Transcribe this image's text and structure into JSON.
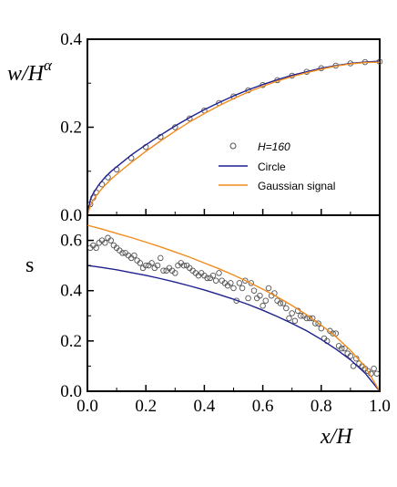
{
  "chart_data": [
    {
      "type": "line",
      "panel": "top",
      "ylabel_base": "w/H",
      "ylabel_exp": "α",
      "xlim": [
        0.0,
        1.0
      ],
      "ylim": [
        0.0,
        0.4
      ],
      "yticks": [
        "0.0",
        "0.2",
        "0.4"
      ],
      "legend": [
        {
          "label": "H=160",
          "marker": "open-circle",
          "italic": true
        },
        {
          "label": "Circle",
          "color": "#1f1f8f"
        },
        {
          "label": "Gaussian signal",
          "color": "#f08c1e"
        }
      ],
      "series": [
        {
          "name": "H=160",
          "style": "scatter",
          "color": "#555555",
          "x": [
            0.01,
            0.02,
            0.03,
            0.05,
            0.07,
            0.1,
            0.15,
            0.2,
            0.25,
            0.3,
            0.35,
            0.4,
            0.45,
            0.5,
            0.55,
            0.6,
            0.65,
            0.7,
            0.75,
            0.8,
            0.85,
            0.9,
            0.95,
            1.0
          ],
          "y": [
            0.025,
            0.04,
            0.052,
            0.07,
            0.086,
            0.104,
            0.13,
            0.155,
            0.178,
            0.2,
            0.22,
            0.238,
            0.255,
            0.27,
            0.284,
            0.296,
            0.307,
            0.317,
            0.326,
            0.334,
            0.34,
            0.345,
            0.348,
            0.349
          ]
        },
        {
          "name": "Circle",
          "style": "line",
          "color": "#1f1f8f",
          "x": [
            0.0,
            0.01,
            0.02,
            0.04,
            0.06,
            0.08,
            0.1,
            0.15,
            0.2,
            0.25,
            0.3,
            0.35,
            0.4,
            0.45,
            0.5,
            0.55,
            0.6,
            0.65,
            0.7,
            0.75,
            0.8,
            0.85,
            0.9,
            0.95,
            1.0
          ],
          "y": [
            0.0,
            0.035,
            0.05,
            0.07,
            0.086,
            0.099,
            0.11,
            0.137,
            0.16,
            0.182,
            0.203,
            0.222,
            0.24,
            0.256,
            0.271,
            0.285,
            0.297,
            0.308,
            0.318,
            0.326,
            0.334,
            0.34,
            0.345,
            0.348,
            0.35
          ]
        },
        {
          "name": "Gaussian signal",
          "style": "line",
          "color": "#f08c1e",
          "x": [
            0.0,
            0.01,
            0.02,
            0.04,
            0.06,
            0.08,
            0.1,
            0.15,
            0.2,
            0.25,
            0.3,
            0.35,
            0.4,
            0.45,
            0.5,
            0.55,
            0.6,
            0.65,
            0.7,
            0.75,
            0.8,
            0.85,
            0.9,
            0.95,
            1.0
          ],
          "y": [
            0.0,
            0.022,
            0.034,
            0.053,
            0.068,
            0.081,
            0.093,
            0.12,
            0.145,
            0.169,
            0.191,
            0.212,
            0.231,
            0.249,
            0.265,
            0.28,
            0.293,
            0.305,
            0.315,
            0.324,
            0.332,
            0.339,
            0.344,
            0.347,
            0.348
          ]
        }
      ]
    },
    {
      "type": "scatter",
      "panel": "bottom",
      "ylabel": "s",
      "xlabel": "x/H",
      "xlim": [
        0.0,
        1.0
      ],
      "ylim": [
        0.0,
        0.7
      ],
      "xticks": [
        "0.0",
        "0.2",
        "0.4",
        "0.6",
        "0.8",
        "1.0"
      ],
      "yticks": [
        "0.0",
        "0.2",
        "0.4",
        "0.6"
      ],
      "series": [
        {
          "name": "H=160",
          "style": "scatter",
          "color": "#555555",
          "x": [
            0.01,
            0.02,
            0.03,
            0.04,
            0.05,
            0.06,
            0.07,
            0.08,
            0.09,
            0.1,
            0.11,
            0.12,
            0.13,
            0.14,
            0.15,
            0.16,
            0.17,
            0.18,
            0.19,
            0.2,
            0.21,
            0.22,
            0.23,
            0.24,
            0.25,
            0.26,
            0.27,
            0.28,
            0.29,
            0.3,
            0.31,
            0.32,
            0.33,
            0.34,
            0.35,
            0.36,
            0.37,
            0.38,
            0.39,
            0.4,
            0.41,
            0.42,
            0.43,
            0.44,
            0.45,
            0.46,
            0.47,
            0.48,
            0.49,
            0.5,
            0.51,
            0.52,
            0.53,
            0.54,
            0.55,
            0.56,
            0.57,
            0.58,
            0.59,
            0.6,
            0.61,
            0.62,
            0.63,
            0.64,
            0.65,
            0.66,
            0.67,
            0.68,
            0.69,
            0.7,
            0.71,
            0.72,
            0.73,
            0.74,
            0.75,
            0.76,
            0.77,
            0.78,
            0.79,
            0.8,
            0.81,
            0.82,
            0.83,
            0.84,
            0.85,
            0.86,
            0.87,
            0.88,
            0.89,
            0.9,
            0.91,
            0.92,
            0.93,
            0.94,
            0.95,
            0.96,
            0.97,
            0.98,
            0.99
          ],
          "y": [
            0.57,
            0.58,
            0.57,
            0.59,
            0.6,
            0.59,
            0.61,
            0.6,
            0.58,
            0.57,
            0.56,
            0.55,
            0.55,
            0.54,
            0.53,
            0.54,
            0.52,
            0.51,
            0.49,
            0.5,
            0.5,
            0.51,
            0.49,
            0.5,
            0.53,
            0.48,
            0.48,
            0.49,
            0.48,
            0.47,
            0.5,
            0.51,
            0.5,
            0.5,
            0.49,
            0.48,
            0.47,
            0.46,
            0.47,
            0.46,
            0.45,
            0.45,
            0.46,
            0.44,
            0.47,
            0.44,
            0.43,
            0.42,
            0.43,
            0.41,
            0.36,
            0.43,
            0.41,
            0.44,
            0.37,
            0.43,
            0.4,
            0.37,
            0.38,
            0.34,
            0.36,
            0.41,
            0.38,
            0.39,
            0.36,
            0.35,
            0.35,
            0.33,
            0.29,
            0.31,
            0.28,
            0.32,
            0.3,
            0.3,
            0.29,
            0.29,
            0.29,
            0.27,
            0.27,
            0.25,
            0.21,
            0.2,
            0.24,
            0.23,
            0.23,
            0.18,
            0.17,
            0.17,
            0.15,
            0.14,
            0.1,
            0.13,
            0.11,
            0.1,
            0.09,
            0.08,
            0.07,
            0.09,
            0.07
          ]
        },
        {
          "name": "Circle",
          "style": "line",
          "color": "#1f1f8f",
          "x": [
            0.0,
            0.05,
            0.1,
            0.15,
            0.2,
            0.25,
            0.3,
            0.35,
            0.4,
            0.45,
            0.5,
            0.55,
            0.6,
            0.65,
            0.7,
            0.75,
            0.8,
            0.85,
            0.9,
            0.95,
            1.0
          ],
          "y": [
            0.5,
            0.492,
            0.483,
            0.472,
            0.461,
            0.448,
            0.434,
            0.419,
            0.403,
            0.385,
            0.366,
            0.345,
            0.322,
            0.297,
            0.27,
            0.24,
            0.206,
            0.168,
            0.125,
            0.072,
            0.0
          ]
        },
        {
          "name": "Gaussian signal",
          "style": "line",
          "color": "#f08c1e",
          "x": [
            0.0,
            0.05,
            0.1,
            0.15,
            0.2,
            0.25,
            0.3,
            0.35,
            0.4,
            0.45,
            0.5,
            0.55,
            0.6,
            0.65,
            0.7,
            0.75,
            0.8,
            0.85,
            0.9,
            0.95,
            1.0
          ],
          "y": [
            0.66,
            0.645,
            0.628,
            0.611,
            0.593,
            0.574,
            0.554,
            0.533,
            0.51,
            0.487,
            0.462,
            0.435,
            0.406,
            0.375,
            0.341,
            0.304,
            0.263,
            0.217,
            0.163,
            0.098,
            0.0
          ]
        }
      ]
    }
  ]
}
